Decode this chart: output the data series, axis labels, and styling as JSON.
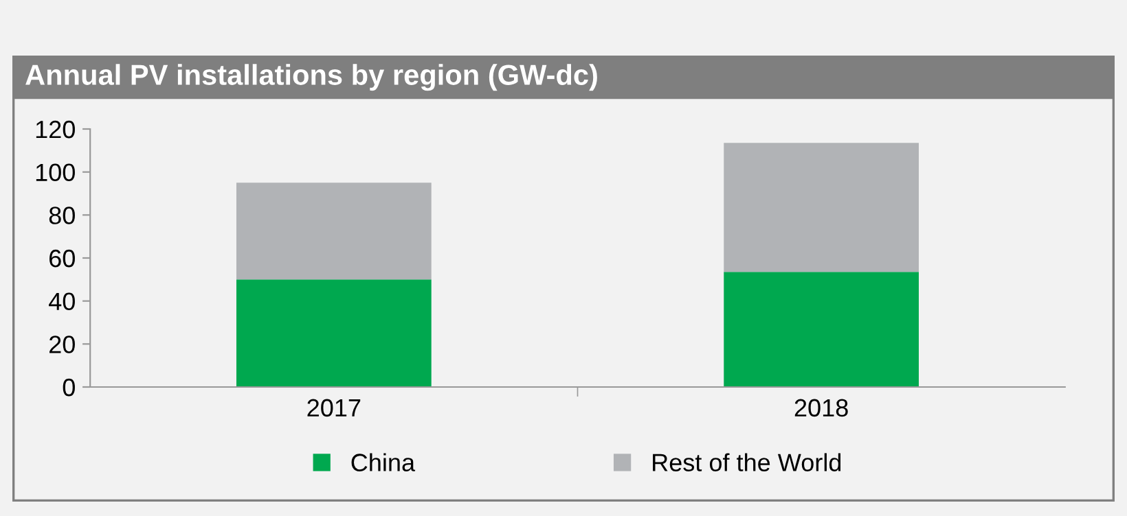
{
  "chart_data": {
    "type": "bar",
    "title": "Annual PV installations by region (GW-dc)",
    "stacked": true,
    "categories": [
      "2017",
      "2018"
    ],
    "series": [
      {
        "name": "China",
        "color": "#00a84f",
        "values": [
          50,
          53.5
        ]
      },
      {
        "name": "Rest of the World",
        "color": "#b1b3b6",
        "values": [
          45,
          60
        ]
      }
    ],
    "ylim": [
      0,
      120
    ],
    "yticks": [
      0,
      20,
      40,
      60,
      80,
      100,
      120
    ],
    "grid": false,
    "legend": "bottom"
  }
}
